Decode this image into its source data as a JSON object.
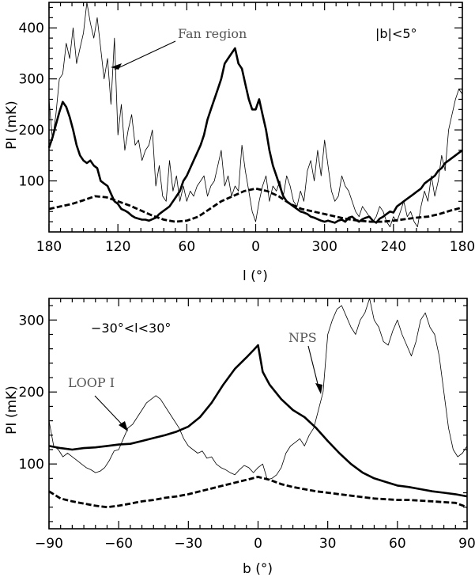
{
  "chart_data": [
    {
      "type": "line",
      "title": "",
      "xlabel": "l (°)",
      "ylabel": "PI (mK)",
      "region_label": "|b|<5°",
      "x_tick_labels": [
        "180",
        "120",
        "60",
        "0",
        "300",
        "240",
        "180"
      ],
      "y_tick_labels": [
        "100",
        "200",
        "300",
        "400"
      ],
      "xlim": [
        0,
        360
      ],
      "ylim": [
        0,
        450
      ],
      "annotation": {
        "text": "Fan region",
        "x": 140,
        "y": 320
      },
      "series": [
        {
          "style": "thin",
          "x": [
            0,
            3,
            6,
            9,
            12,
            15,
            18,
            21,
            24,
            27,
            30,
            33,
            36,
            39,
            42,
            45,
            48,
            51,
            54,
            57,
            60,
            63,
            66,
            69,
            72,
            75,
            78,
            81,
            84,
            87,
            90,
            93,
            96,
            99,
            102,
            105,
            108,
            111,
            114,
            117,
            120,
            123,
            126,
            129,
            132,
            135,
            138,
            141,
            144,
            147,
            150,
            153,
            156,
            159,
            162,
            165,
            168,
            171,
            174,
            177,
            180,
            183,
            186,
            189,
            192,
            195,
            198,
            201,
            204,
            207,
            210,
            213,
            216,
            219,
            222,
            225,
            228,
            231,
            234,
            237,
            240,
            243,
            246,
            249,
            252,
            255,
            258,
            261,
            264,
            267,
            270,
            273,
            276,
            279,
            282,
            285,
            288,
            291,
            294,
            297,
            300,
            303,
            306,
            309,
            312,
            315,
            318,
            321,
            324,
            327,
            330,
            333,
            336,
            339,
            342,
            345,
            348,
            351,
            354,
            357,
            360
          ],
          "values": [
            260,
            180,
            230,
            300,
            310,
            370,
            340,
            400,
            330,
            360,
            390,
            450,
            410,
            380,
            420,
            360,
            300,
            340,
            250,
            380,
            190,
            250,
            160,
            200,
            230,
            170,
            180,
            140,
            160,
            170,
            200,
            90,
            130,
            70,
            60,
            140,
            80,
            110,
            60,
            90,
            60,
            80,
            70,
            90,
            100,
            110,
            70,
            90,
            100,
            130,
            160,
            90,
            110,
            70,
            90,
            80,
            170,
            120,
            80,
            40,
            20,
            60,
            90,
            110,
            60,
            90,
            80,
            100,
            70,
            110,
            90,
            60,
            50,
            80,
            60,
            120,
            140,
            100,
            160,
            110,
            180,
            130,
            80,
            60,
            70,
            110,
            90,
            80,
            60,
            40,
            30,
            50,
            40,
            30,
            20,
            30,
            50,
            40,
            20,
            10,
            30,
            20,
            40,
            60,
            30,
            40,
            20,
            10,
            50,
            80,
            60,
            110,
            70,
            100,
            150,
            120,
            200,
            230,
            260,
            280,
            270
          ]
        },
        {
          "style": "thick",
          "x": [
            0,
            3,
            6,
            9,
            12,
            15,
            18,
            21,
            24,
            27,
            30,
            33,
            36,
            39,
            42,
            45,
            48,
            51,
            54,
            57,
            60,
            63,
            66,
            69,
            72,
            75,
            78,
            81,
            84,
            87,
            90,
            93,
            96,
            99,
            102,
            105,
            108,
            111,
            114,
            117,
            120,
            123,
            126,
            129,
            132,
            135,
            138,
            141,
            144,
            147,
            150,
            153,
            156,
            159,
            162,
            165,
            168,
            171,
            174,
            177,
            180,
            183,
            186,
            189,
            192,
            195,
            198,
            201,
            204,
            207,
            210,
            213,
            216,
            219,
            222,
            225,
            228,
            231,
            234,
            237,
            240,
            243,
            246,
            249,
            252,
            255,
            258,
            261,
            264,
            267,
            270,
            273,
            276,
            279,
            282,
            285,
            288,
            291,
            294,
            297,
            300,
            303,
            306,
            309,
            312,
            315,
            318,
            321,
            324,
            327,
            330,
            333,
            336,
            339,
            342,
            345,
            348,
            351,
            354,
            357,
            360
          ],
          "values": [
            165,
            185,
            210,
            235,
            255,
            245,
            225,
            200,
            170,
            150,
            140,
            135,
            140,
            130,
            125,
            100,
            95,
            90,
            75,
            60,
            55,
            45,
            42,
            38,
            32,
            28,
            26,
            24,
            24,
            22,
            25,
            28,
            35,
            40,
            45,
            50,
            60,
            70,
            80,
            100,
            110,
            125,
            140,
            155,
            170,
            190,
            220,
            240,
            260,
            280,
            300,
            330,
            340,
            350,
            360,
            330,
            320,
            290,
            260,
            240,
            240,
            260,
            230,
            200,
            160,
            130,
            110,
            90,
            70,
            60,
            55,
            50,
            45,
            40,
            38,
            35,
            30,
            28,
            25,
            22,
            20,
            22,
            20,
            18,
            22,
            24,
            20,
            28,
            30,
            24,
            20,
            25,
            28,
            30,
            22,
            18,
            26,
            30,
            35,
            40,
            38,
            50,
            55,
            60,
            65,
            70,
            75,
            80,
            85,
            95,
            100,
            105,
            110,
            120,
            125,
            135,
            140,
            145,
            150,
            155,
            160
          ]
        },
        {
          "style": "dashed",
          "x": [
            0,
            10,
            20,
            30,
            40,
            50,
            60,
            70,
            80,
            90,
            100,
            110,
            120,
            130,
            140,
            150,
            160,
            170,
            180,
            190,
            200,
            210,
            220,
            230,
            240,
            250,
            260,
            270,
            280,
            290,
            300,
            310,
            320,
            330,
            340,
            350,
            360
          ],
          "values": [
            45,
            50,
            55,
            62,
            70,
            68,
            60,
            52,
            42,
            32,
            24,
            20,
            22,
            30,
            45,
            60,
            70,
            80,
            85,
            80,
            70,
            55,
            45,
            40,
            35,
            30,
            25,
            22,
            20,
            20,
            22,
            25,
            28,
            30,
            35,
            42,
            48
          ]
        }
      ]
    },
    {
      "type": "line",
      "title": "",
      "xlabel": "b (°)",
      "ylabel": "PI (mK)",
      "region_label": "−30°<l<30°",
      "x_tick_labels": [
        "−90",
        "−60",
        "−30",
        "0",
        "30",
        "60",
        "90"
      ],
      "y_tick_labels": [
        "100",
        "200",
        "300"
      ],
      "xlim": [
        -90,
        90
      ],
      "ylim": [
        10,
        330
      ],
      "annotations": [
        {
          "text": "LOOP I",
          "x": -55,
          "y": 145
        },
        {
          "text": "NPS",
          "x": 28,
          "y": 188
        }
      ],
      "series": [
        {
          "style": "thin",
          "x": [
            -90,
            -88,
            -86,
            -84,
            -82,
            -80,
            -78,
            -76,
            -74,
            -72,
            -70,
            -68,
            -66,
            -64,
            -62,
            -60,
            -58,
            -56,
            -54,
            -52,
            -50,
            -48,
            -46,
            -44,
            -42,
            -40,
            -38,
            -36,
            -34,
            -32,
            -30,
            -28,
            -26,
            -24,
            -22,
            -20,
            -18,
            -16,
            -14,
            -12,
            -10,
            -8,
            -6,
            -4,
            -2,
            0,
            2,
            4,
            6,
            8,
            10,
            12,
            14,
            16,
            18,
            20,
            22,
            24,
            26,
            28,
            30,
            32,
            34,
            36,
            38,
            40,
            42,
            44,
            46,
            48,
            50,
            52,
            54,
            56,
            58,
            60,
            62,
            64,
            66,
            68,
            70,
            72,
            74,
            76,
            78,
            80,
            82,
            84,
            86,
            88,
            90
          ],
          "values": [
            160,
            125,
            120,
            110,
            115,
            110,
            105,
            100,
            95,
            92,
            88,
            90,
            95,
            105,
            118,
            120,
            135,
            150,
            155,
            165,
            175,
            185,
            190,
            195,
            190,
            180,
            170,
            160,
            150,
            135,
            125,
            120,
            115,
            118,
            108,
            110,
            100,
            95,
            92,
            88,
            85,
            92,
            98,
            95,
            88,
            95,
            100,
            78,
            80,
            85,
            95,
            115,
            125,
            130,
            135,
            125,
            140,
            150,
            175,
            200,
            280,
            300,
            315,
            320,
            305,
            290,
            280,
            300,
            310,
            330,
            300,
            290,
            270,
            265,
            285,
            300,
            280,
            265,
            250,
            270,
            300,
            310,
            290,
            280,
            250,
            200,
            150,
            120,
            110,
            115,
            125
          ]
        },
        {
          "style": "thick",
          "x": [
            -90,
            -85,
            -80,
            -75,
            -70,
            -65,
            -60,
            -55,
            -50,
            -45,
            -40,
            -35,
            -30,
            -25,
            -20,
            -15,
            -10,
            -5,
            -2,
            0,
            2,
            5,
            10,
            15,
            20,
            25,
            30,
            35,
            40,
            45,
            50,
            55,
            60,
            65,
            70,
            75,
            80,
            85,
            90
          ],
          "values": [
            125,
            122,
            120,
            122,
            123,
            125,
            127,
            128,
            132,
            136,
            140,
            145,
            152,
            165,
            185,
            210,
            232,
            248,
            258,
            265,
            228,
            210,
            190,
            175,
            165,
            150,
            132,
            115,
            100,
            88,
            80,
            75,
            70,
            68,
            65,
            62,
            60,
            58,
            55
          ]
        },
        {
          "style": "dashed",
          "x": [
            -90,
            -85,
            -80,
            -75,
            -70,
            -65,
            -60,
            -55,
            -50,
            -45,
            -40,
            -35,
            -30,
            -25,
            -20,
            -15,
            -10,
            -5,
            0,
            5,
            10,
            15,
            20,
            25,
            30,
            35,
            40,
            45,
            50,
            55,
            60,
            65,
            70,
            75,
            80,
            85,
            90
          ],
          "values": [
            62,
            52,
            48,
            45,
            42,
            40,
            42,
            45,
            48,
            50,
            53,
            55,
            58,
            62,
            66,
            70,
            74,
            78,
            82,
            78,
            72,
            68,
            65,
            62,
            60,
            58,
            56,
            54,
            52,
            51,
            50,
            50,
            49,
            48,
            47,
            46,
            40
          ]
        }
      ]
    }
  ]
}
